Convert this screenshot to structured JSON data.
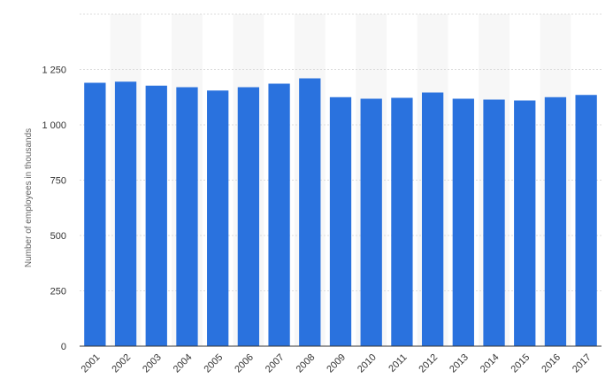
{
  "chart_data": {
    "type": "bar",
    "title": "",
    "xlabel": "",
    "ylabel": "Number of employees in thousands",
    "categories": [
      "2001",
      "2002",
      "2003",
      "2004",
      "2005",
      "2006",
      "2007",
      "2008",
      "2009",
      "2010",
      "2011",
      "2012",
      "2013",
      "2014",
      "2015",
      "2016",
      "2017"
    ],
    "values": [
      1190,
      1195,
      1177,
      1170,
      1155,
      1170,
      1186,
      1210,
      1125,
      1118,
      1122,
      1146,
      1118,
      1114,
      1110,
      1125,
      1135
    ],
    "ylim": [
      0,
      1500
    ],
    "yticks": [
      0,
      250,
      500,
      750,
      1000,
      1250
    ],
    "ytick_labels": [
      "0",
      "250",
      "500",
      "750",
      "1 000",
      "1 250"
    ],
    "grid": true,
    "bar_color": "#2a72de",
    "band_color": "#f7f7f7",
    "grid_color": "#dddddd",
    "axis_color": "#333333"
  }
}
